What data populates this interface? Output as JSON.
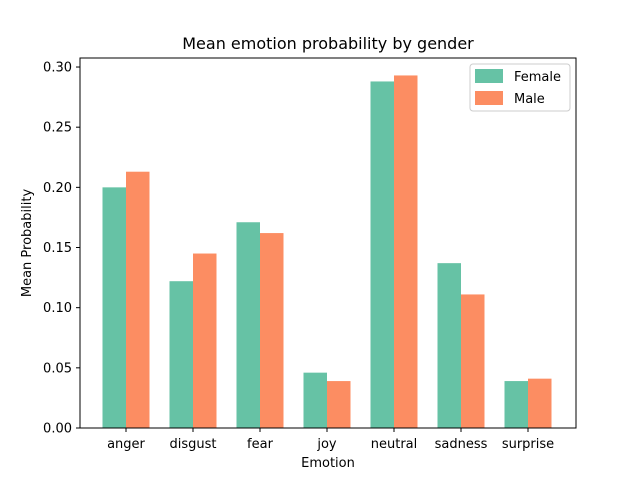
{
  "chart_data": {
    "type": "bar",
    "title": "Mean emotion probability by gender",
    "xlabel": "Emotion",
    "ylabel": "Mean Probability",
    "categories": [
      "anger",
      "disgust",
      "fear",
      "joy",
      "neutral",
      "sadness",
      "surprise"
    ],
    "series": [
      {
        "name": "Female",
        "color": "#66c2a5",
        "values": [
          0.2,
          0.122,
          0.171,
          0.046,
          0.288,
          0.137,
          0.039
        ]
      },
      {
        "name": "Male",
        "color": "#fc8d62",
        "values": [
          0.213,
          0.145,
          0.162,
          0.039,
          0.293,
          0.111,
          0.041
        ]
      }
    ],
    "ylim": [
      0,
      0.3
    ],
    "yticks": [
      0.0,
      0.05,
      0.1,
      0.15,
      0.2,
      0.25,
      0.3
    ],
    "ytick_labels": [
      "0.00",
      "0.05",
      "0.10",
      "0.15",
      "0.20",
      "0.25",
      "0.30"
    ],
    "grid": false,
    "legend_position": "top-right"
  }
}
